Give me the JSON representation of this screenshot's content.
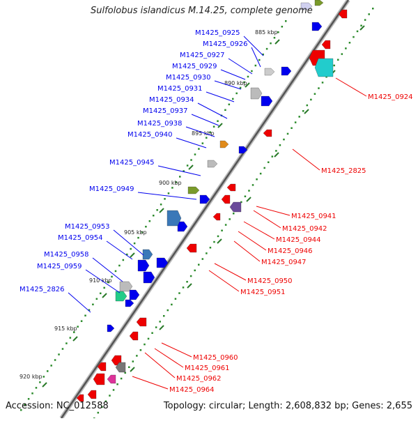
{
  "title": "Sulfolobus islandicus M.14.25, complete genome",
  "footer": {
    "accession": "Accession: NC_012588",
    "summary": "Topology: circular; Length: 2,608,832 bp; Genes: 2,655"
  },
  "colors": {
    "plus_strand": "#0000ee",
    "minus_strand": "#ee0000",
    "backbone": "#888888",
    "tick_dots": "#2a8a2a"
  },
  "scale_ticks": [
    "885 kbp",
    "890 kbp",
    "895 kbp",
    "900 kbp",
    "905 kbp",
    "910 kbp",
    "915 kbp",
    "920 kbp"
  ],
  "left_labels": [
    "M1425_0925",
    "M1425_0926",
    "M1425_0927",
    "M1425_0929",
    "M1425_0930",
    "M1425_0931",
    "M1425_0934",
    "M1425_0937",
    "M1425_0938",
    "M1425_0940",
    "M1425_0945",
    "M1425_0949",
    "M1425_0953",
    "M1425_0954",
    "M1425_0958",
    "M1425_0959",
    "M1425_2826"
  ],
  "right_labels": [
    "M1425_0924",
    "M1425_2825",
    "M1425_0941",
    "M1425_0942",
    "M1425_0944",
    "M1425_0946",
    "M1425_0947",
    "M1425_0950",
    "M1425_0951",
    "M1425_0960",
    "M1425_0961",
    "M1425_0962",
    "M1425_0964"
  ]
}
